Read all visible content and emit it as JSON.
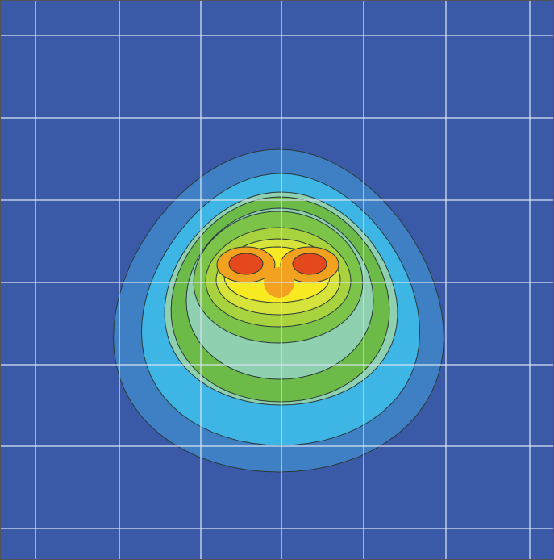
{
  "chart_data": {
    "type": "contour",
    "grid": true,
    "background": "#3a5aa8",
    "colors": [
      "#3f7fc4",
      "#3db6e6",
      "#8ed0b0",
      "#6cba48",
      "#8ed0b0",
      "#7cc34a",
      "#a9d33e",
      "#d6e33a",
      "#f7ea22",
      "#f2a21f",
      "#e5481c"
    ],
    "grid_color": "#d8e2f0"
  }
}
